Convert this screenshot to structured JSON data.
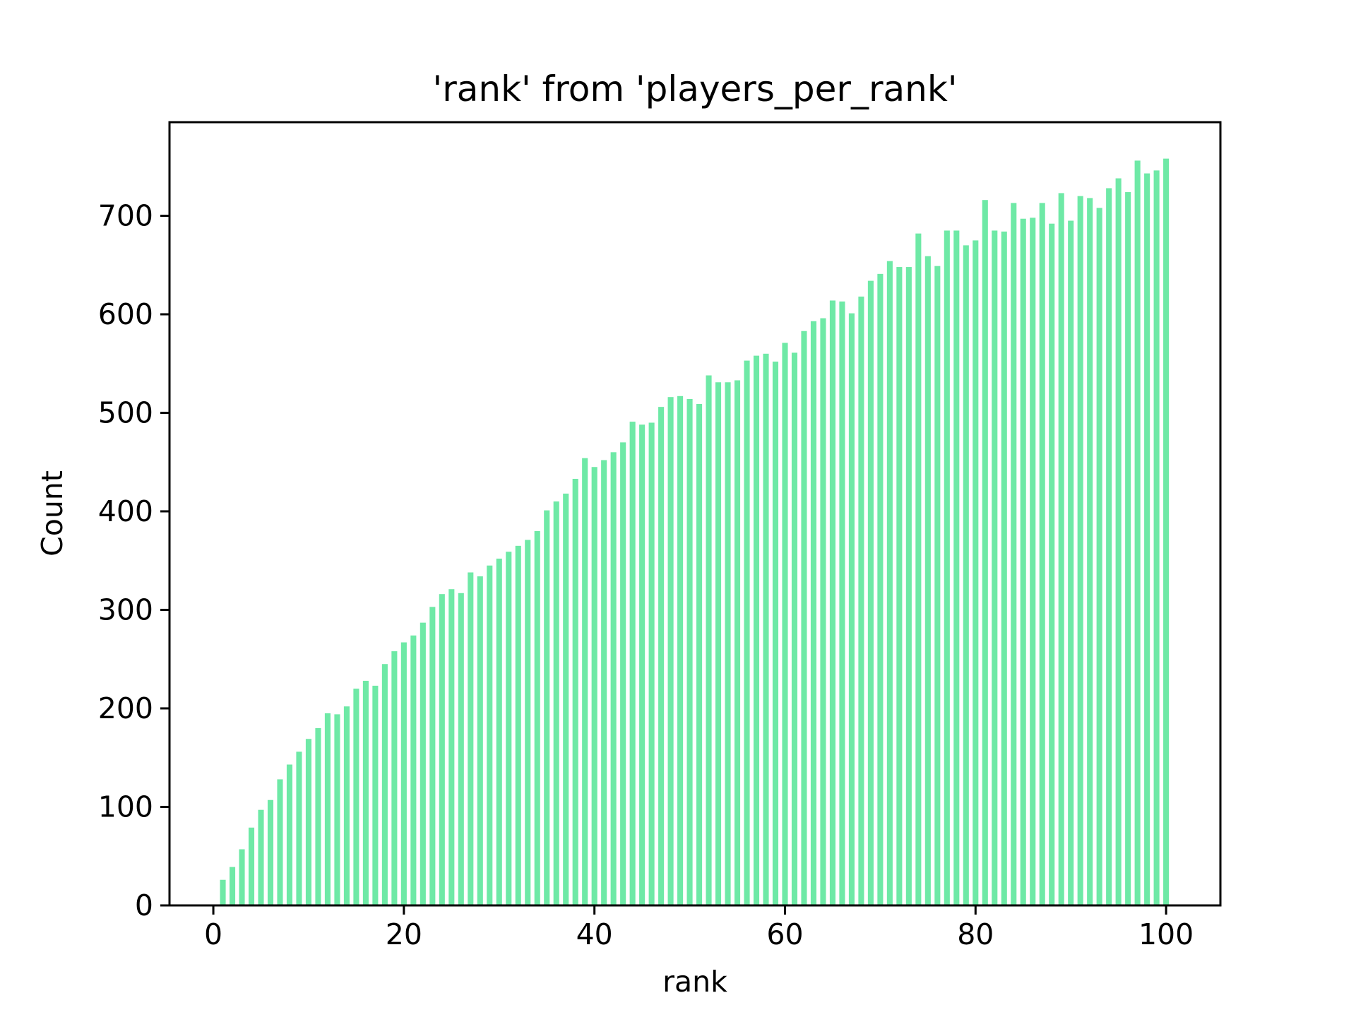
{
  "figure": {
    "background": "#ffffff",
    "text_color": "#000000",
    "spine_color": "#000000"
  },
  "chart_data": {
    "type": "bar",
    "title": "'rank' from 'players_per_rank'",
    "xlabel": "rank",
    "ylabel": "Count",
    "x": [
      1,
      2,
      3,
      4,
      5,
      6,
      7,
      8,
      9,
      10,
      11,
      12,
      13,
      14,
      15,
      16,
      17,
      18,
      19,
      20,
      21,
      22,
      23,
      24,
      25,
      26,
      27,
      28,
      29,
      30,
      31,
      32,
      33,
      34,
      35,
      36,
      37,
      38,
      39,
      40,
      41,
      42,
      43,
      44,
      45,
      46,
      47,
      48,
      49,
      50,
      51,
      52,
      53,
      54,
      55,
      56,
      57,
      58,
      59,
      60,
      61,
      62,
      63,
      64,
      65,
      66,
      67,
      68,
      69,
      70,
      71,
      72,
      73,
      74,
      75,
      76,
      77,
      78,
      79,
      80,
      81,
      82,
      83,
      84,
      85,
      86,
      87,
      88,
      89,
      90,
      91,
      92,
      93,
      94,
      95,
      96,
      97,
      98,
      99,
      100
    ],
    "values": [
      26,
      39,
      57,
      79,
      97,
      107,
      128,
      143,
      156,
      169,
      180,
      195,
      194,
      202,
      220,
      228,
      223,
      245,
      258,
      267,
      274,
      287,
      303,
      316,
      321,
      317,
      338,
      334,
      345,
      352,
      359,
      365,
      371,
      380,
      401,
      410,
      418,
      433,
      454,
      445,
      452,
      460,
      470,
      491,
      488,
      490,
      506,
      516,
      517,
      514,
      509,
      538,
      531,
      531,
      533,
      553,
      558,
      560,
      552,
      571,
      561,
      583,
      593,
      596,
      614,
      613,
      601,
      618,
      634,
      641,
      654,
      648,
      648,
      682,
      659,
      649,
      685,
      685,
      670,
      675,
      716,
      685,
      684,
      713,
      697,
      698,
      713,
      692,
      723,
      695,
      720,
      718,
      708,
      728,
      738,
      724,
      756,
      743,
      746,
      758
    ],
    "bar_color": "#6ee9a6",
    "bar_width": 0.6,
    "xticks": [
      0,
      20,
      40,
      60,
      80,
      100
    ],
    "yticks": [
      0,
      100,
      200,
      300,
      400,
      500,
      600,
      700
    ],
    "xlim": [
      -4.6,
      105.7
    ],
    "ylim": [
      0,
      795
    ],
    "grid": false,
    "legend_position": "none"
  }
}
